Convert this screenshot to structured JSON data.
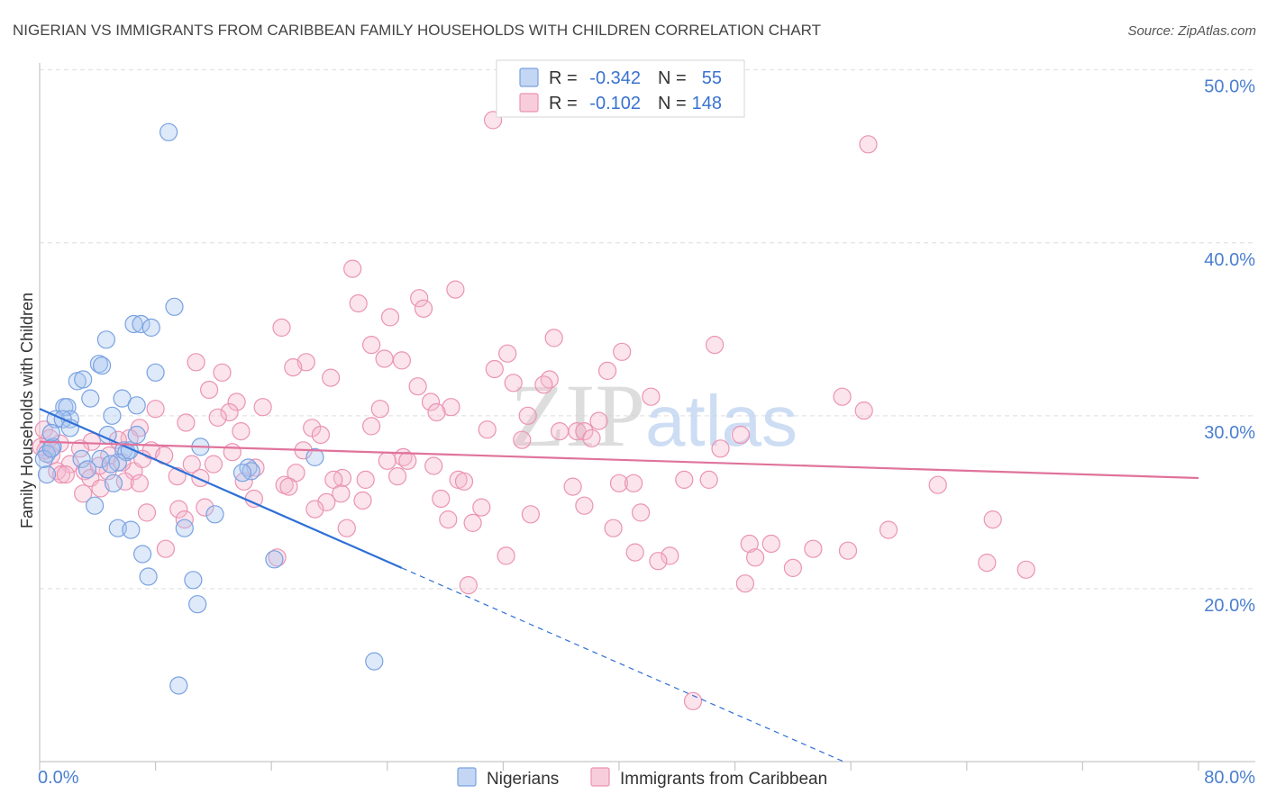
{
  "source": "Source: ZipAtlas.com",
  "watermark": {
    "zip": "ZIP",
    "atlas": "atlas"
  },
  "legend": {
    "r_label": "R =",
    "n_label": "N ="
  },
  "chart_data": {
    "type": "scatter",
    "title": "NIGERIAN VS IMMIGRANTS FROM CARIBBEAN FAMILY HOUSEHOLDS WITH CHILDREN CORRELATION CHART",
    "xlabel": "",
    "ylabel": "Family Households with Children",
    "xlim": [
      0,
      80
    ],
    "ylim": [
      10,
      50.4
    ],
    "grid": true,
    "legend_position": "top",
    "x_ticks": [
      0,
      8,
      16,
      24,
      32,
      40,
      48,
      56,
      64,
      72,
      80
    ],
    "x_tick_labels": [
      {
        "value": 0,
        "label": "0.0%"
      },
      {
        "value": 80,
        "label": "80.0%"
      }
    ],
    "y_ticks": [
      {
        "value": 50,
        "label": "50.0%"
      },
      {
        "value": 40,
        "label": "40.0%"
      },
      {
        "value": 30,
        "label": "30.0%"
      },
      {
        "value": 20,
        "label": "20.0%"
      }
    ],
    "series": [
      {
        "name": "Nigerians",
        "r_value": "-0.342",
        "n_value": "55",
        "fill": "#a9c4ee",
        "stroke": "#79a2e2",
        "line": "#2e6fd6",
        "trend": {
          "solid": [
            [
              0,
              30.4
            ],
            [
              25.0,
              21.2
            ]
          ],
          "dashed": [
            [
              25.0,
              21.2
            ],
            [
              55.5,
              10.0
            ]
          ]
        },
        "points": [
          [
            8.9,
            46.4
          ],
          [
            9.3,
            36.3
          ],
          [
            6.5,
            35.3
          ],
          [
            7.0,
            35.3
          ],
          [
            7.7,
            35.1
          ],
          [
            4.6,
            34.4
          ],
          [
            4.1,
            33.0
          ],
          [
            4.3,
            32.9
          ],
          [
            8.0,
            32.5
          ],
          [
            2.6,
            32.0
          ],
          [
            3.0,
            32.1
          ],
          [
            3.5,
            31.0
          ],
          [
            5.7,
            31.0
          ],
          [
            6.7,
            30.6
          ],
          [
            1.7,
            30.5
          ],
          [
            1.9,
            30.5
          ],
          [
            5.0,
            30.0
          ],
          [
            1.1,
            29.8
          ],
          [
            2.1,
            29.8
          ],
          [
            1.6,
            29.8
          ],
          [
            2.1,
            29.3
          ],
          [
            4.7,
            28.9
          ],
          [
            6.7,
            28.9
          ],
          [
            0.9,
            28.2
          ],
          [
            11.1,
            28.2
          ],
          [
            0.5,
            27.8
          ],
          [
            2.9,
            27.5
          ],
          [
            5.8,
            28.0
          ],
          [
            6.0,
            27.9
          ],
          [
            6.2,
            28.0
          ],
          [
            4.2,
            27.5
          ],
          [
            5.4,
            27.3
          ],
          [
            19.0,
            27.6
          ],
          [
            3.3,
            26.9
          ],
          [
            4.9,
            27.2
          ],
          [
            0.5,
            26.6
          ],
          [
            14.4,
            27.0
          ],
          [
            14.6,
            26.8
          ],
          [
            14.0,
            26.7
          ],
          [
            5.1,
            26.1
          ],
          [
            3.8,
            24.8
          ],
          [
            12.1,
            24.3
          ],
          [
            5.4,
            23.5
          ],
          [
            6.3,
            23.4
          ],
          [
            10.0,
            23.5
          ],
          [
            7.1,
            22.0
          ],
          [
            16.2,
            21.7
          ],
          [
            7.5,
            20.7
          ],
          [
            10.6,
            20.5
          ],
          [
            10.9,
            19.1
          ],
          [
            23.1,
            15.8
          ],
          [
            9.6,
            14.4
          ],
          [
            0.8,
            29.0
          ],
          [
            0.3,
            27.5
          ],
          [
            0.8,
            28.1
          ]
        ]
      },
      {
        "name": "Immigrants from Caribbean",
        "r_value": "-0.102",
        "n_value": "148",
        "fill": "#f5b8cc",
        "stroke": "#eb93b3",
        "line": "#e0739b",
        "trend": {
          "solid": [
            [
              0,
              28.5
            ],
            [
              80,
              26.4
            ]
          ],
          "dashed": []
        },
        "points": [
          [
            31.3,
            47.1
          ],
          [
            57.2,
            45.7
          ],
          [
            21.6,
            38.5
          ],
          [
            28.7,
            37.3
          ],
          [
            26.2,
            36.8
          ],
          [
            22.0,
            36.5
          ],
          [
            26.5,
            36.2
          ],
          [
            24.2,
            35.7
          ],
          [
            16.7,
            35.1
          ],
          [
            35.5,
            34.5
          ],
          [
            46.6,
            34.1
          ],
          [
            22.9,
            34.1
          ],
          [
            32.3,
            33.6
          ],
          [
            40.2,
            33.7
          ],
          [
            23.8,
            33.3
          ],
          [
            25.0,
            33.2
          ],
          [
            10.8,
            33.1
          ],
          [
            18.4,
            33.1
          ],
          [
            17.5,
            32.8
          ],
          [
            31.4,
            32.7
          ],
          [
            39.2,
            32.6
          ],
          [
            12.6,
            32.5
          ],
          [
            20.1,
            32.2
          ],
          [
            35.2,
            32.1
          ],
          [
            32.7,
            31.9
          ],
          [
            34.8,
            31.8
          ],
          [
            26.1,
            31.7
          ],
          [
            11.7,
            31.5
          ],
          [
            55.4,
            31.1
          ],
          [
            42.2,
            31.1
          ],
          [
            13.6,
            30.8
          ],
          [
            27.0,
            30.8
          ],
          [
            23.5,
            30.4
          ],
          [
            15.4,
            30.5
          ],
          [
            56.9,
            30.3
          ],
          [
            28.4,
            30.5
          ],
          [
            8.0,
            30.4
          ],
          [
            27.4,
            30.2
          ],
          [
            13.1,
            30.2
          ],
          [
            33.7,
            30.0
          ],
          [
            12.3,
            29.9
          ],
          [
            38.6,
            29.7
          ],
          [
            10.1,
            29.6
          ],
          [
            6.9,
            29.3
          ],
          [
            22.9,
            29.4
          ],
          [
            18.8,
            29.3
          ],
          [
            30.9,
            29.2
          ],
          [
            35.9,
            29.1
          ],
          [
            37.1,
            29.1
          ],
          [
            37.6,
            29.1
          ],
          [
            13.9,
            29.1
          ],
          [
            19.4,
            28.9
          ],
          [
            48.4,
            28.9
          ],
          [
            38.1,
            28.7
          ],
          [
            6.2,
            28.7
          ],
          [
            3.6,
            28.5
          ],
          [
            5.4,
            28.6
          ],
          [
            33.3,
            28.6
          ],
          [
            1.4,
            28.4
          ],
          [
            47.0,
            28.1
          ],
          [
            7.7,
            28.0
          ],
          [
            18.2,
            28.0
          ],
          [
            13.3,
            27.9
          ],
          [
            0.8,
            27.7
          ],
          [
            8.6,
            27.7
          ],
          [
            25.1,
            27.6
          ],
          [
            24.0,
            27.4
          ],
          [
            25.4,
            27.4
          ],
          [
            10.5,
            27.2
          ],
          [
            2.1,
            27.2
          ],
          [
            12.0,
            27.2
          ],
          [
            14.9,
            27.0
          ],
          [
            27.2,
            27.1
          ],
          [
            3.1,
            26.8
          ],
          [
            4.7,
            26.8
          ],
          [
            1.2,
            26.8
          ],
          [
            6.5,
            26.8
          ],
          [
            17.7,
            26.7
          ],
          [
            1.5,
            26.6
          ],
          [
            9.5,
            26.5
          ],
          [
            3.5,
            26.4
          ],
          [
            20.9,
            26.4
          ],
          [
            20.3,
            26.3
          ],
          [
            22.5,
            26.3
          ],
          [
            24.7,
            26.5
          ],
          [
            11.1,
            26.4
          ],
          [
            14.1,
            26.2
          ],
          [
            5.9,
            26.2
          ],
          [
            6.9,
            26.1
          ],
          [
            28.9,
            26.3
          ],
          [
            29.3,
            26.2
          ],
          [
            44.5,
            26.3
          ],
          [
            46.2,
            26.3
          ],
          [
            40.0,
            26.1
          ],
          [
            41.0,
            26.1
          ],
          [
            36.8,
            25.9
          ],
          [
            62.0,
            26.0
          ],
          [
            16.9,
            26.0
          ],
          [
            17.2,
            25.9
          ],
          [
            4.2,
            25.8
          ],
          [
            3.0,
            25.5
          ],
          [
            20.8,
            25.5
          ],
          [
            14.8,
            25.2
          ],
          [
            27.7,
            25.2
          ],
          [
            22.3,
            25.1
          ],
          [
            19.8,
            25.0
          ],
          [
            30.5,
            24.7
          ],
          [
            19.0,
            24.6
          ],
          [
            37.6,
            24.8
          ],
          [
            9.6,
            24.6
          ],
          [
            11.4,
            24.7
          ],
          [
            7.4,
            24.4
          ],
          [
            33.9,
            24.3
          ],
          [
            41.5,
            24.4
          ],
          [
            10.0,
            24.0
          ],
          [
            65.8,
            24.0
          ],
          [
            28.2,
            24.0
          ],
          [
            29.9,
            23.8
          ],
          [
            21.2,
            23.5
          ],
          [
            39.6,
            23.5
          ],
          [
            58.6,
            23.4
          ],
          [
            49.0,
            22.6
          ],
          [
            50.5,
            22.6
          ],
          [
            8.7,
            22.3
          ],
          [
            53.4,
            22.3
          ],
          [
            55.8,
            22.2
          ],
          [
            41.1,
            22.1
          ],
          [
            43.5,
            21.9
          ],
          [
            32.2,
            21.9
          ],
          [
            16.4,
            21.8
          ],
          [
            49.4,
            21.8
          ],
          [
            42.7,
            21.6
          ],
          [
            65.4,
            21.5
          ],
          [
            52.0,
            21.2
          ],
          [
            68.1,
            21.1
          ],
          [
            48.7,
            20.3
          ],
          [
            29.6,
            20.2
          ],
          [
            45.1,
            13.5
          ],
          [
            0.3,
            29.2
          ],
          [
            0.4,
            28.0
          ],
          [
            0.7,
            28.7
          ],
          [
            0.1,
            28.2
          ],
          [
            7.1,
            27.5
          ],
          [
            4.8,
            27.7
          ],
          [
            5.7,
            27.3
          ],
          [
            2.8,
            28.1
          ],
          [
            1.8,
            26.6
          ],
          [
            4.1,
            27.1
          ]
        ]
      }
    ]
  }
}
